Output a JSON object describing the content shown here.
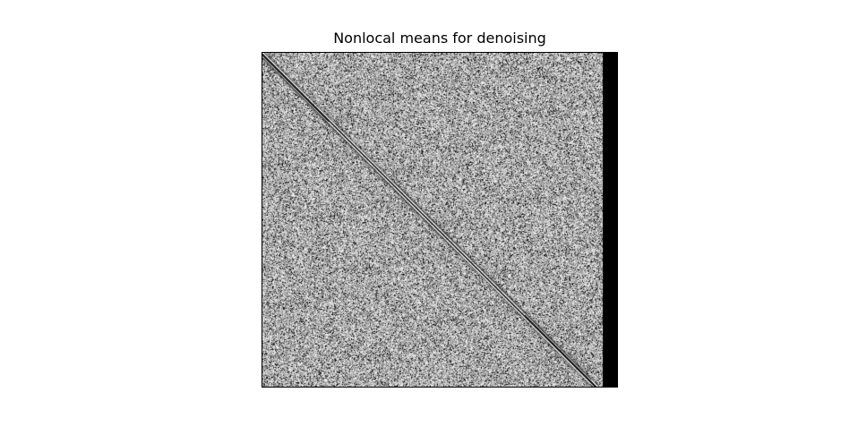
{
  "figure": {
    "title": "Nonlocal means for denoising"
  },
  "image": {
    "description_icon": "grayscale-noise-matrix-image",
    "colormap": "gray",
    "colors": {
      "frame": "#000000",
      "background": "#ffffff",
      "right_band": "#000000"
    }
  }
}
